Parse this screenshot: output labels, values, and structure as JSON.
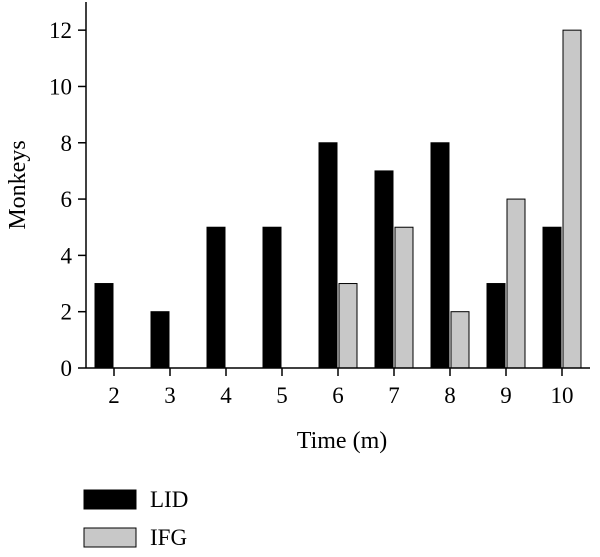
{
  "chart_data": {
    "type": "bar",
    "title": "",
    "xlabel": "Time (m)",
    "ylabel": "Monkeys",
    "categories": [
      "2",
      "3",
      "4",
      "5",
      "6",
      "7",
      "8",
      "9",
      "10"
    ],
    "ylim": [
      0,
      13
    ],
    "yticks": [
      "0",
      "2",
      "4",
      "6",
      "8",
      "10",
      "12"
    ],
    "grid": false,
    "legend_position": "bottom-left",
    "series": [
      {
        "name": "LID",
        "values": [
          3,
          2,
          5,
          5,
          8,
          7,
          8,
          3,
          5
        ],
        "color": "#000000"
      },
      {
        "name": "IFG",
        "values": [
          0,
          0,
          0,
          0,
          3,
          5,
          2,
          6,
          12
        ],
        "color": "#c8c8c8"
      }
    ]
  }
}
